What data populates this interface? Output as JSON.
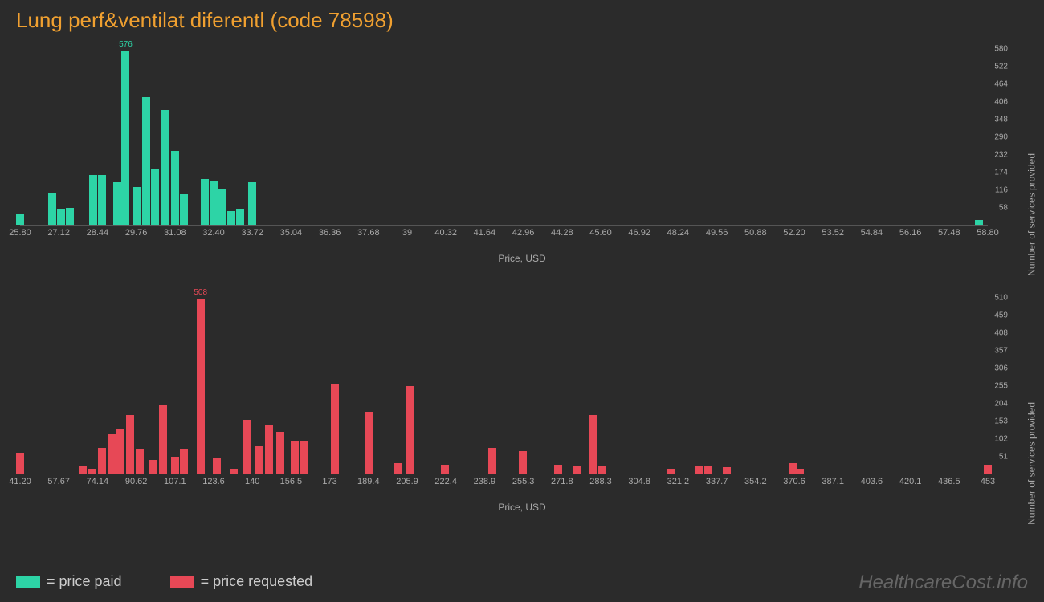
{
  "title": "Lung perf&ventilat diferentl (code 78598)",
  "watermark": "HealthcareCost.info",
  "chart1": {
    "type": "histogram",
    "color": "#2dd4a6",
    "peak_label": "576",
    "x_label": "Price, USD",
    "y_label": "Number of services provided",
    "x_ticks": [
      "25.80",
      "27.12",
      "28.44",
      "29.76",
      "31.08",
      "32.40",
      "33.72",
      "35.04",
      "36.36",
      "37.68",
      "39",
      "40.32",
      "41.64",
      "42.96",
      "44.28",
      "45.60",
      "46.92",
      "48.24",
      "49.56",
      "50.88",
      "52.20",
      "53.52",
      "54.84",
      "56.16",
      "57.48",
      "58.80"
    ],
    "xlim": [
      25.8,
      58.8
    ],
    "y_ticks": [
      58,
      116,
      174,
      232,
      290,
      348,
      406,
      464,
      522,
      580
    ],
    "ylim": [
      0,
      580
    ],
    "bars": [
      {
        "x": 25.8,
        "y": 35
      },
      {
        "x": 26.9,
        "y": 105
      },
      {
        "x": 27.2,
        "y": 50
      },
      {
        "x": 27.5,
        "y": 55
      },
      {
        "x": 28.3,
        "y": 165
      },
      {
        "x": 28.6,
        "y": 165
      },
      {
        "x": 29.1,
        "y": 140
      },
      {
        "x": 29.4,
        "y": 576,
        "label": "576"
      },
      {
        "x": 29.76,
        "y": 125
      },
      {
        "x": 30.1,
        "y": 420
      },
      {
        "x": 30.4,
        "y": 185
      },
      {
        "x": 30.75,
        "y": 380
      },
      {
        "x": 31.08,
        "y": 245
      },
      {
        "x": 31.4,
        "y": 100
      },
      {
        "x": 32.1,
        "y": 150
      },
      {
        "x": 32.4,
        "y": 145
      },
      {
        "x": 32.7,
        "y": 120
      },
      {
        "x": 33.0,
        "y": 45
      },
      {
        "x": 33.3,
        "y": 50
      },
      {
        "x": 33.72,
        "y": 140
      },
      {
        "x": 58.5,
        "y": 15
      }
    ]
  },
  "chart2": {
    "type": "histogram",
    "color": "#e74856",
    "peak_label": "508",
    "x_label": "Price, USD",
    "y_label": "Number of services provided",
    "x_ticks": [
      "41.20",
      "57.67",
      "74.14",
      "90.62",
      "107.1",
      "123.6",
      "140",
      "156.5",
      "173",
      "189.4",
      "205.9",
      "222.4",
      "238.9",
      "255.3",
      "271.8",
      "288.3",
      "304.8",
      "321.2",
      "337.7",
      "354.2",
      "370.6",
      "387.1",
      "403.6",
      "420.1",
      "436.5",
      "453"
    ],
    "xlim": [
      41.2,
      453
    ],
    "y_ticks": [
      51,
      102,
      153,
      204,
      255,
      306,
      357,
      408,
      459,
      510
    ],
    "ylim": [
      0,
      510
    ],
    "bars": [
      {
        "x": 41.2,
        "y": 60
      },
      {
        "x": 68,
        "y": 20
      },
      {
        "x": 72,
        "y": 15
      },
      {
        "x": 76,
        "y": 75
      },
      {
        "x": 80,
        "y": 115
      },
      {
        "x": 84,
        "y": 130
      },
      {
        "x": 88,
        "y": 170
      },
      {
        "x": 92,
        "y": 70
      },
      {
        "x": 98,
        "y": 40
      },
      {
        "x": 102,
        "y": 200
      },
      {
        "x": 107,
        "y": 50
      },
      {
        "x": 111,
        "y": 70
      },
      {
        "x": 118,
        "y": 508,
        "label": "508"
      },
      {
        "x": 125,
        "y": 45
      },
      {
        "x": 132,
        "y": 15
      },
      {
        "x": 138,
        "y": 155
      },
      {
        "x": 143,
        "y": 80
      },
      {
        "x": 147,
        "y": 140
      },
      {
        "x": 152,
        "y": 120
      },
      {
        "x": 158,
        "y": 95
      },
      {
        "x": 162,
        "y": 95
      },
      {
        "x": 175,
        "y": 260
      },
      {
        "x": 190,
        "y": 180
      },
      {
        "x": 202,
        "y": 30
      },
      {
        "x": 207,
        "y": 255
      },
      {
        "x": 222,
        "y": 25
      },
      {
        "x": 242,
        "y": 75
      },
      {
        "x": 255,
        "y": 65
      },
      {
        "x": 270,
        "y": 25
      },
      {
        "x": 278,
        "y": 20
      },
      {
        "x": 285,
        "y": 170
      },
      {
        "x": 289,
        "y": 20
      },
      {
        "x": 318,
        "y": 15
      },
      {
        "x": 330,
        "y": 20
      },
      {
        "x": 334,
        "y": 22
      },
      {
        "x": 342,
        "y": 18
      },
      {
        "x": 370,
        "y": 30
      },
      {
        "x": 373,
        "y": 15
      },
      {
        "x": 453,
        "y": 25
      }
    ]
  },
  "legend": {
    "paid": {
      "color": "#2dd4a6",
      "label": "= price paid"
    },
    "requested": {
      "color": "#e74856",
      "label": "= price requested"
    }
  }
}
